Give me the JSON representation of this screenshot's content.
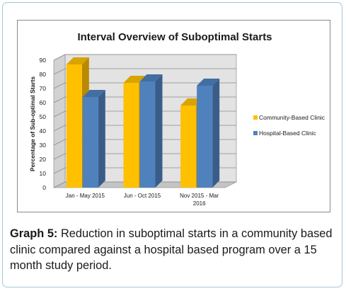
{
  "chart_data": {
    "type": "bar",
    "title": "Interval Overview of Suboptimal Starts",
    "xlabel": "",
    "ylabel": "Percentage of Sub-optimal Starts",
    "ylim": [
      0,
      90
    ],
    "yticks": [
      0,
      10,
      20,
      30,
      40,
      50,
      60,
      70,
      80,
      90
    ],
    "categories": [
      "Jan - May 2015",
      "Jun - Oct 2015",
      "Nov 2015 - Mar 2016"
    ],
    "series": [
      {
        "name": "Community-Based Clinic",
        "values": [
          87,
          74,
          58
        ],
        "color": "#ffc000"
      },
      {
        "name": "Hospital-Based Clinic",
        "values": [
          64,
          75,
          72
        ],
        "color": "#4f81bd"
      }
    ],
    "grid": true,
    "legend": "right"
  },
  "caption": {
    "label": "Graph 5:",
    "text": " Reduction in suboptimal starts in a community based clinic compared against a hospital based program over a 15 month study period."
  }
}
